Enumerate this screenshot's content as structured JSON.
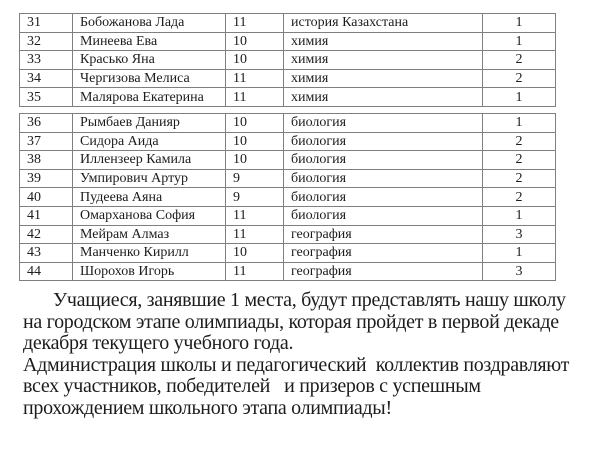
{
  "document": {
    "background": "#ffffff",
    "text_color": "#1c1c1c",
    "border_color": "#7f7f7f"
  },
  "results_table": {
    "columns": [
      "number",
      "name",
      "grade",
      "subject",
      "place"
    ],
    "sections": [
      {
        "rows": [
          {
            "num": "31",
            "name": "Бобожанова Лада",
            "grade": "11",
            "subject": "история Казахстана",
            "place": "1"
          },
          {
            "num": "32",
            "name": "Минеева Ева",
            "grade": "10",
            "subject": "химия",
            "place": "1"
          },
          {
            "num": "33",
            "name": "Красько Яна",
            "grade": "10",
            "subject": "химия",
            "place": "2"
          },
          {
            "num": "34",
            "name": "Чергизова Мелиса",
            "grade": "11",
            "subject": "химия",
            "place": "2"
          },
          {
            "num": "35",
            "name": "Малярова Екатерина",
            "grade": "11",
            "subject": "химия",
            "place": "1"
          }
        ]
      },
      {
        "rows": [
          {
            "num": "36",
            "name": "Рымбаев Данияр",
            "grade": "10",
            "subject": "биология",
            "place": "1"
          },
          {
            "num": "37",
            "name": "Сидора Аида",
            "grade": "10",
            "subject": "биология",
            "place": "2"
          },
          {
            "num": "38",
            "name": "Иллензеер Камила",
            "grade": "10",
            "subject": "биология",
            "place": "2"
          },
          {
            "num": "39",
            "name": "Умпирович Артур",
            "grade": "9",
            "subject": "биология",
            "place": "2"
          },
          {
            "num": "40",
            "name": "Пудеева Аяна",
            "grade": "9",
            "subject": "биология",
            "place": "2"
          },
          {
            "num": "41",
            "name": "Омарханова София",
            "grade": "11",
            "subject": "биология",
            "place": "1"
          },
          {
            "num": "42",
            "name": "Мейрам Алмаз",
            "grade": "11",
            "subject": "география",
            "place": "3"
          },
          {
            "num": "43",
            "name": "Манченко Кирилл",
            "grade": "10",
            "subject": "география",
            "place": "1"
          },
          {
            "num": "44",
            "name": "Шорохов Игорь",
            "grade": "11",
            "subject": "география",
            "place": "3"
          }
        ]
      }
    ]
  },
  "announcement": {
    "paragraph1_lines": [
      "Учащиеся, занявшие 1 места, будут представлять нашу школу",
      "на городском этапе олимпиады, которая пройдет в первой декаде",
      "декабря текущего учебного года."
    ],
    "paragraph2_lines": [
      "Администрация школы и педагогический  коллектив поздравляют",
      "всех участников, победителей   и призеров с успешным",
      "прохождением школьного этапа олимпиады!"
    ]
  }
}
